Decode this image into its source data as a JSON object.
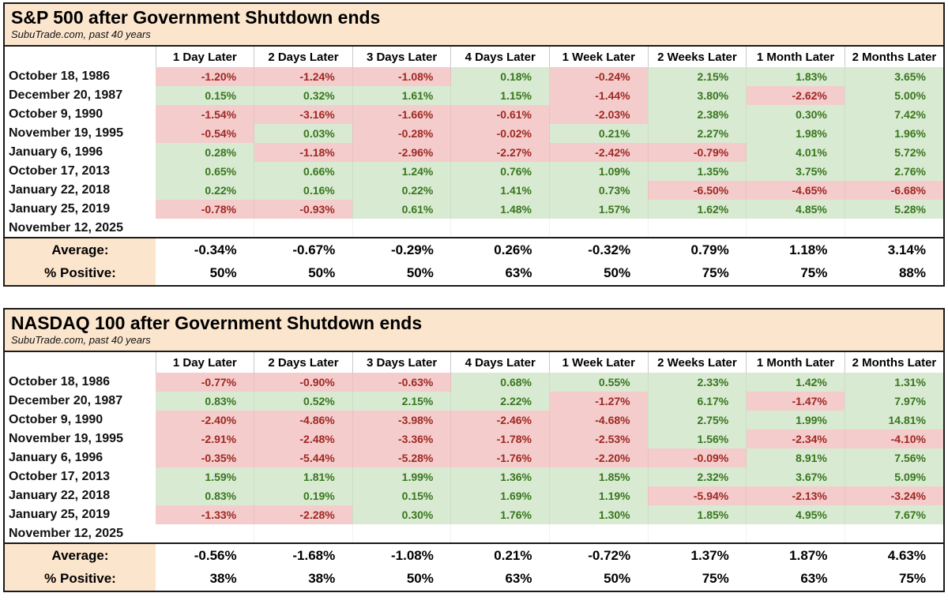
{
  "colors": {
    "banner_bg": "#fce5cd",
    "positive_bg": "#d9ead3",
    "positive_text": "#38761d",
    "negative_bg": "#f4cccc",
    "negative_text": "#9e2822",
    "border": "#1a1a1a"
  },
  "chart_data": [
    {
      "type": "table",
      "title": "S&P 500 after Government Shutdown ends",
      "subtitle": "SubuTrade.com, past 40 years",
      "columns": [
        "1 Day Later",
        "2 Days Later",
        "3 Days Later",
        "4 Days Later",
        "1 Week Later",
        "2 Weeks Later",
        "1 Month Later",
        "2 Months Later"
      ],
      "rows": [
        {
          "date": "October 18, 1986",
          "values": [
            "-1.20%",
            "-1.24%",
            "-1.08%",
            "0.18%",
            "-0.24%",
            "2.15%",
            "1.83%",
            "3.65%"
          ]
        },
        {
          "date": "December 20, 1987",
          "values": [
            "0.15%",
            "0.32%",
            "1.61%",
            "1.15%",
            "-1.44%",
            "3.80%",
            "-2.62%",
            "5.00%"
          ]
        },
        {
          "date": "October 9, 1990",
          "values": [
            "-1.54%",
            "-3.16%",
            "-1.66%",
            "-0.61%",
            "-2.03%",
            "2.38%",
            "0.30%",
            "7.42%"
          ]
        },
        {
          "date": "November 19, 1995",
          "values": [
            "-0.54%",
            "0.03%",
            "-0.28%",
            "-0.02%",
            "0.21%",
            "2.27%",
            "1.98%",
            "1.96%"
          ]
        },
        {
          "date": "January 6, 1996",
          "values": [
            "0.28%",
            "-1.18%",
            "-2.96%",
            "-2.27%",
            "-2.42%",
            "-0.79%",
            "4.01%",
            "5.72%"
          ]
        },
        {
          "date": "October 17, 2013",
          "values": [
            "0.65%",
            "0.66%",
            "1.24%",
            "0.76%",
            "1.09%",
            "1.35%",
            "3.75%",
            "2.76%"
          ]
        },
        {
          "date": "January 22, 2018",
          "values": [
            "0.22%",
            "0.16%",
            "0.22%",
            "1.41%",
            "0.73%",
            "-6.50%",
            "-4.65%",
            "-6.68%"
          ]
        },
        {
          "date": "January 25, 2019",
          "values": [
            "-0.78%",
            "-0.93%",
            "0.61%",
            "1.48%",
            "1.57%",
            "1.62%",
            "4.85%",
            "5.28%"
          ]
        },
        {
          "date": "November 12, 2025",
          "values": [
            "",
            "",
            "",
            "",
            "",
            "",
            "",
            ""
          ]
        }
      ],
      "summary": {
        "average_label": "Average:",
        "average": [
          "-0.34%",
          "-0.67%",
          "-0.29%",
          "0.26%",
          "-0.32%",
          "0.79%",
          "1.18%",
          "3.14%"
        ],
        "positive_label": "% Positive:",
        "positive": [
          "50%",
          "50%",
          "50%",
          "63%",
          "50%",
          "75%",
          "75%",
          "88%"
        ]
      }
    },
    {
      "type": "table",
      "title": "NASDAQ 100 after Government Shutdown ends",
      "subtitle": "SubuTrade.com, past 40 years",
      "columns": [
        "1 Day Later",
        "2 Days Later",
        "3 Days Later",
        "4 Days Later",
        "1 Week Later",
        "2 Weeks Later",
        "1 Month Later",
        "2 Months Later"
      ],
      "rows": [
        {
          "date": "October 18, 1986",
          "values": [
            "-0.77%",
            "-0.90%",
            "-0.63%",
            "0.68%",
            "0.55%",
            "2.33%",
            "1.42%",
            "1.31%"
          ]
        },
        {
          "date": "December 20, 1987",
          "values": [
            "0.83%",
            "0.52%",
            "2.15%",
            "2.22%",
            "-1.27%",
            "6.17%",
            "-1.47%",
            "7.97%"
          ]
        },
        {
          "date": "October 9, 1990",
          "values": [
            "-2.40%",
            "-4.86%",
            "-3.98%",
            "-2.46%",
            "-4.68%",
            "2.75%",
            "1.99%",
            "14.81%"
          ]
        },
        {
          "date": "November 19, 1995",
          "values": [
            "-2.91%",
            "-2.48%",
            "-3.36%",
            "-1.78%",
            "-2.53%",
            "1.56%",
            "-2.34%",
            "-4.10%"
          ]
        },
        {
          "date": "January 6, 1996",
          "values": [
            "-0.35%",
            "-5.44%",
            "-5.28%",
            "-1.76%",
            "-2.20%",
            "-0.09%",
            "8.91%",
            "7.56%"
          ]
        },
        {
          "date": "October 17, 2013",
          "values": [
            "1.59%",
            "1.81%",
            "1.99%",
            "1.36%",
            "1.85%",
            "2.32%",
            "3.67%",
            "5.09%"
          ]
        },
        {
          "date": "January 22, 2018",
          "values": [
            "0.83%",
            "0.19%",
            "0.15%",
            "1.69%",
            "1.19%",
            "-5.94%",
            "-2.13%",
            "-3.24%"
          ]
        },
        {
          "date": "January 25, 2019",
          "values": [
            "-1.33%",
            "-2.28%",
            "0.30%",
            "1.76%",
            "1.30%",
            "1.85%",
            "4.95%",
            "7.67%"
          ]
        },
        {
          "date": "November 12, 2025",
          "values": [
            "",
            "",
            "",
            "",
            "",
            "",
            "",
            ""
          ]
        }
      ],
      "summary": {
        "average_label": "Average:",
        "average": [
          "-0.56%",
          "-1.68%",
          "-1.08%",
          "0.21%",
          "-0.72%",
          "1.37%",
          "1.87%",
          "4.63%"
        ],
        "positive_label": "% Positive:",
        "positive": [
          "38%",
          "38%",
          "50%",
          "63%",
          "50%",
          "75%",
          "63%",
          "75%"
        ]
      }
    }
  ]
}
